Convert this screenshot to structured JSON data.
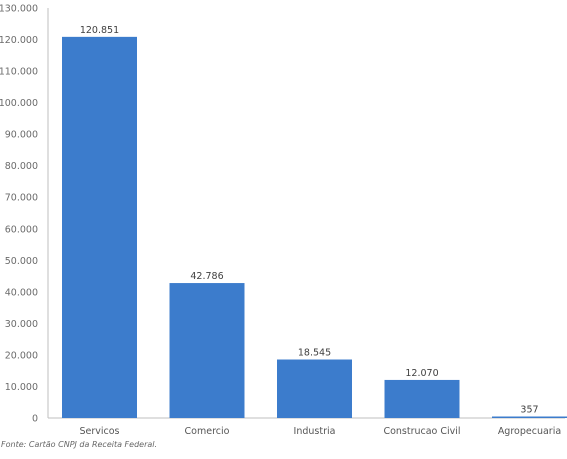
{
  "chart_data": {
    "type": "bar",
    "categories": [
      "Servicos",
      "Comercio",
      "Industria",
      "Construcao Civil",
      "Agropecuaria"
    ],
    "values": [
      120851,
      42786,
      18545,
      12070,
      357
    ],
    "value_labels": [
      "120.851",
      "42.786",
      "18.545",
      "12.070",
      "357"
    ],
    "y_ticks": [
      0,
      10000,
      20000,
      30000,
      40000,
      50000,
      60000,
      70000,
      80000,
      90000,
      100000,
      110000,
      120000,
      130000
    ],
    "y_tick_labels": [
      "0",
      "10.000",
      "20.000",
      "30.000",
      "40.000",
      "50.000",
      "60.000",
      "70.000",
      "80.000",
      "90.000",
      "100.000",
      "110.000",
      "120.000",
      "130.000"
    ],
    "ylim": [
      0,
      130000
    ],
    "grid": false,
    "bar_color": "#3c7ccc"
  },
  "source_note": "Fonte: Cartão CNPJ da Receita Federal."
}
